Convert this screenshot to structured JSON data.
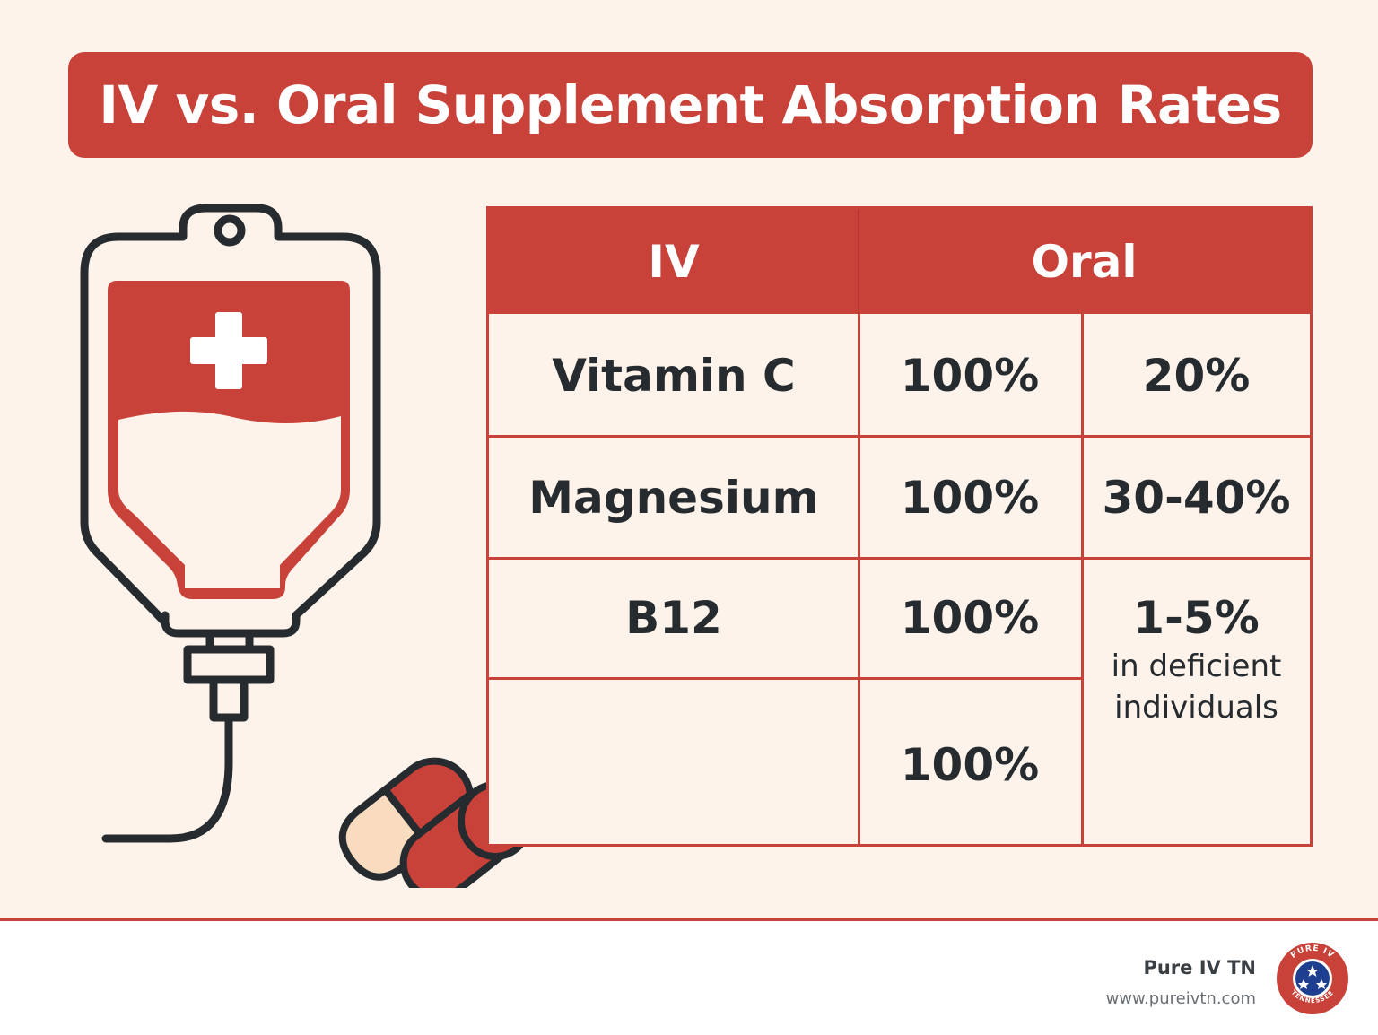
{
  "title": "IV vs. Oral Supplement Absorption Rates",
  "table": {
    "headers": [
      "IV",
      "Oral"
    ],
    "rows": [
      {
        "name": "Vitamin C",
        "iv": "100%",
        "oral": "20%"
      },
      {
        "name": "Magnesium",
        "iv": "100%",
        "oral": "30-40%"
      },
      {
        "name": "B12",
        "iv": "100%",
        "oral": "1-5%",
        "oral_note": "in deficient individuals"
      },
      {
        "name": "",
        "iv": "100%"
      }
    ]
  },
  "footer": {
    "brand_name": "Pure IV TN",
    "brand_url": "www.pureivtn.com",
    "seal_text": "PURE IV TENNESSEE"
  },
  "colors": {
    "accent": "#c8423a",
    "background": "#fdf3ea",
    "text": "#262b30",
    "pill_light": "#f9dcc0"
  },
  "icons": [
    "iv-bag-icon",
    "medical-cross-icon",
    "capsule-icon",
    "tennessee-seal-icon"
  ]
}
